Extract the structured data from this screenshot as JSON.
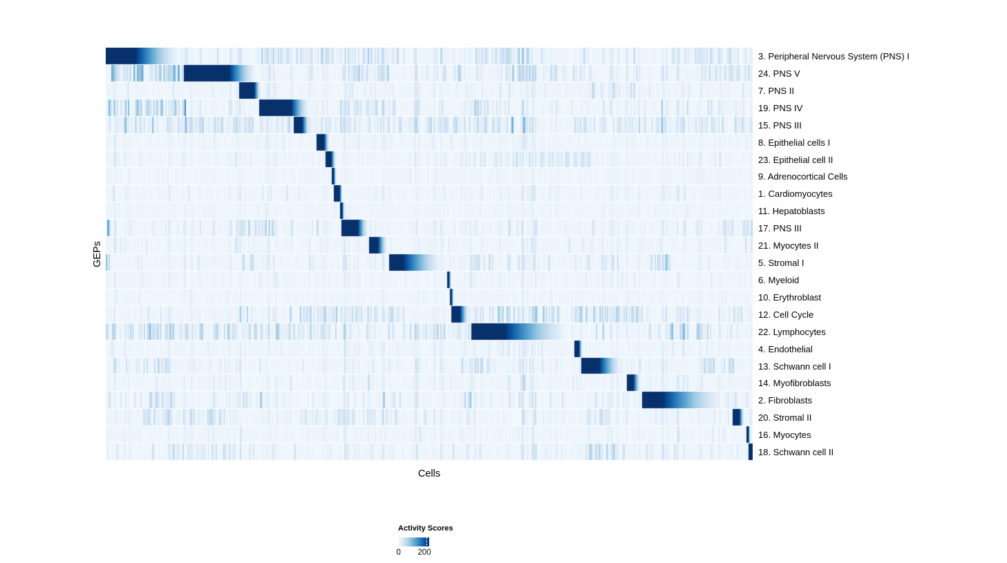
{
  "chart_data": {
    "type": "heatmap",
    "title": "",
    "xlabel": "Cells",
    "ylabel": "GEPs",
    "grid": false,
    "colormap": [
      "#F7FBFF",
      "#DEEBF7",
      "#C6DBEF",
      "#9ECAE1",
      "#6BAED6",
      "#4292C6",
      "#2171B5",
      "#08519C",
      "#08306B"
    ],
    "value_range": [
      0,
      220
    ],
    "legend": {
      "title": "Activity Scores",
      "tick_labels": [
        "0",
        "200"
      ],
      "tick_positions": [
        0,
        0.91
      ],
      "position": "bottom"
    },
    "n_rows": 24,
    "rows": [
      {
        "label": "3. Peripheral Nervous System (PNS) I",
        "solid_start": 0.0,
        "solid_end": 0.045,
        "fade_end": 0.12,
        "peak": 220,
        "noise": 0.45,
        "clusters": [
          [
            0.23,
            0.45,
            0.45
          ],
          [
            0.57,
            0.66,
            0.4
          ],
          [
            0.86,
            1.0,
            0.35
          ]
        ]
      },
      {
        "label": "24. PNS V",
        "solid_start": 0.12,
        "solid_end": 0.19,
        "fade_end": 0.236,
        "peak": 220,
        "noise": 0.55,
        "clusters": [
          [
            0.0,
            0.12,
            0.9
          ],
          [
            0.36,
            0.44,
            0.4
          ],
          [
            0.6,
            0.75,
            0.35
          ],
          [
            0.92,
            1.0,
            0.35
          ]
        ]
      },
      {
        "label": "7. PNS II",
        "solid_start": 0.206,
        "solid_end": 0.229,
        "fade_end": 0.24,
        "peak": 220,
        "noise": 0.3,
        "clusters": [
          [
            0.74,
            0.82,
            0.45
          ]
        ]
      },
      {
        "label": "19. PNS IV",
        "solid_start": 0.237,
        "solid_end": 0.286,
        "fade_end": 0.316,
        "peak": 220,
        "noise": 0.5,
        "clusters": [
          [
            0.0,
            0.13,
            0.8
          ],
          [
            0.24,
            0.3,
            0.65
          ],
          [
            0.36,
            0.44,
            0.3
          ],
          [
            0.56,
            0.62,
            0.35
          ]
        ]
      },
      {
        "label": "15. PNS III",
        "solid_start": 0.29,
        "solid_end": 0.303,
        "fade_end": 0.316,
        "peak": 220,
        "noise": 0.5,
        "clusters": [
          [
            0.0,
            0.29,
            0.4
          ],
          [
            0.32,
            0.55,
            0.3
          ],
          [
            0.56,
            0.63,
            0.45
          ],
          [
            0.72,
            1.0,
            0.32
          ]
        ]
      },
      {
        "label": "8. Epithelial cells I",
        "solid_start": 0.325,
        "solid_end": 0.337,
        "fade_end": 0.346,
        "peak": 220,
        "noise": 0.2,
        "clusters": []
      },
      {
        "label": "23. Epithelial cell II",
        "solid_start": 0.339,
        "solid_end": 0.348,
        "fade_end": 0.356,
        "peak": 220,
        "noise": 0.22,
        "clusters": [
          [
            0.55,
            0.75,
            0.28
          ]
        ]
      },
      {
        "label": "9. Adrenocortical Cells",
        "solid_start": 0.349,
        "solid_end": 0.352,
        "fade_end": 0.356,
        "peak": 220,
        "noise": 0.12,
        "clusters": []
      },
      {
        "label": "1. Cardiomyocytes",
        "solid_start": 0.352,
        "solid_end": 0.361,
        "fade_end": 0.366,
        "peak": 220,
        "noise": 0.28,
        "clusters": []
      },
      {
        "label": "11. Hepatoblasts",
        "solid_start": 0.362,
        "solid_end": 0.365,
        "fade_end": 0.369,
        "peak": 220,
        "noise": 0.12,
        "clusters": []
      },
      {
        "label": "17. PNS III",
        "solid_start": 0.364,
        "solid_end": 0.389,
        "fade_end": 0.406,
        "peak": 220,
        "noise": 0.4,
        "clusters": [
          [
            0.0,
            0.008,
            0.85
          ],
          [
            0.2,
            0.26,
            0.45
          ],
          [
            0.95,
            1.0,
            0.38
          ]
        ]
      },
      {
        "label": "21. Myocytes II",
        "solid_start": 0.406,
        "solid_end": 0.42,
        "fade_end": 0.436,
        "peak": 220,
        "noise": 0.3,
        "clusters": [
          [
            0.985,
            0.995,
            0.8
          ]
        ]
      },
      {
        "label": "5. Stromal I",
        "solid_start": 0.437,
        "solid_end": 0.459,
        "fade_end": 0.525,
        "peak": 220,
        "noise": 0.4,
        "clusters": [
          [
            0.0,
            0.006,
            0.75
          ],
          [
            0.21,
            0.23,
            0.45
          ],
          [
            0.56,
            0.6,
            0.38
          ],
          [
            0.84,
            0.87,
            0.42
          ]
        ]
      },
      {
        "label": "6. Myeloid",
        "solid_start": 0.527,
        "solid_end": 0.53,
        "fade_end": 0.534,
        "peak": 220,
        "noise": 0.2,
        "clusters": []
      },
      {
        "label": "10. Erythroblast",
        "solid_start": 0.531,
        "solid_end": 0.534,
        "fade_end": 0.538,
        "peak": 220,
        "noise": 0.12,
        "clusters": []
      },
      {
        "label": "12. Cell Cycle",
        "solid_start": 0.534,
        "solid_end": 0.547,
        "fade_end": 0.562,
        "peak": 220,
        "noise": 0.45,
        "clusters": [
          [
            0.21,
            0.23,
            0.55
          ],
          [
            0.3,
            0.45,
            0.45
          ],
          [
            0.567,
            0.7,
            0.55
          ],
          [
            0.72,
            0.83,
            0.45
          ],
          [
            0.962,
            0.972,
            0.55
          ]
        ]
      },
      {
        "label": "22. Lymphocytes",
        "solid_start": 0.565,
        "solid_end": 0.616,
        "fade_end": 0.723,
        "peak": 220,
        "noise": 0.5,
        "clusters": [
          [
            0.0,
            0.3,
            0.5
          ],
          [
            0.3,
            0.38,
            0.5
          ],
          [
            0.45,
            0.55,
            0.4
          ],
          [
            0.83,
            0.93,
            0.45
          ]
        ]
      },
      {
        "label": "4. Endothelial",
        "solid_start": 0.724,
        "solid_end": 0.731,
        "fade_end": 0.737,
        "peak": 220,
        "noise": 0.25,
        "clusters": []
      },
      {
        "label": "13. Schwann cell I",
        "solid_start": 0.735,
        "solid_end": 0.762,
        "fade_end": 0.8,
        "peak": 220,
        "noise": 0.4,
        "clusters": [
          [
            0.02,
            0.1,
            0.45
          ],
          [
            0.55,
            0.6,
            0.38
          ],
          [
            0.92,
            0.97,
            0.42
          ]
        ]
      },
      {
        "label": "14. Myofibroblasts",
        "solid_start": 0.805,
        "solid_end": 0.815,
        "fade_end": 0.827,
        "peak": 220,
        "noise": 0.28,
        "clusters": []
      },
      {
        "label": "2. Fibroblasts",
        "solid_start": 0.828,
        "solid_end": 0.86,
        "fade_end": 0.962,
        "peak": 220,
        "noise": 0.4,
        "clusters": [
          [
            0.05,
            0.12,
            0.45
          ],
          [
            0.21,
            0.24,
            0.38
          ],
          [
            0.55,
            0.57,
            0.38
          ]
        ]
      },
      {
        "label": "20. Stromal II",
        "solid_start": 0.968,
        "solid_end": 0.979,
        "fade_end": 0.987,
        "peak": 220,
        "noise": 0.4,
        "clusters": [
          [
            0.05,
            0.2,
            0.38
          ],
          [
            0.3,
            0.45,
            0.32
          ],
          [
            0.73,
            0.78,
            0.38
          ]
        ]
      },
      {
        "label": "16. Myocytes",
        "solid_start": 0.99,
        "solid_end": 0.993,
        "fade_end": 0.996,
        "peak": 220,
        "noise": 0.22,
        "clusters": []
      },
      {
        "label": "18. Schwann cell II",
        "solid_start": 0.993,
        "solid_end": 1.0,
        "fade_end": 1.0,
        "peak": 220,
        "noise": 0.4,
        "clusters": [
          [
            0.1,
            0.2,
            0.38
          ],
          [
            0.74,
            0.8,
            0.45
          ]
        ]
      }
    ]
  },
  "colors": {
    "page_background": "#FFFFFF",
    "heatmap_base": "#F3F8FD",
    "block_dark": "#08306B",
    "text": "#000000"
  }
}
